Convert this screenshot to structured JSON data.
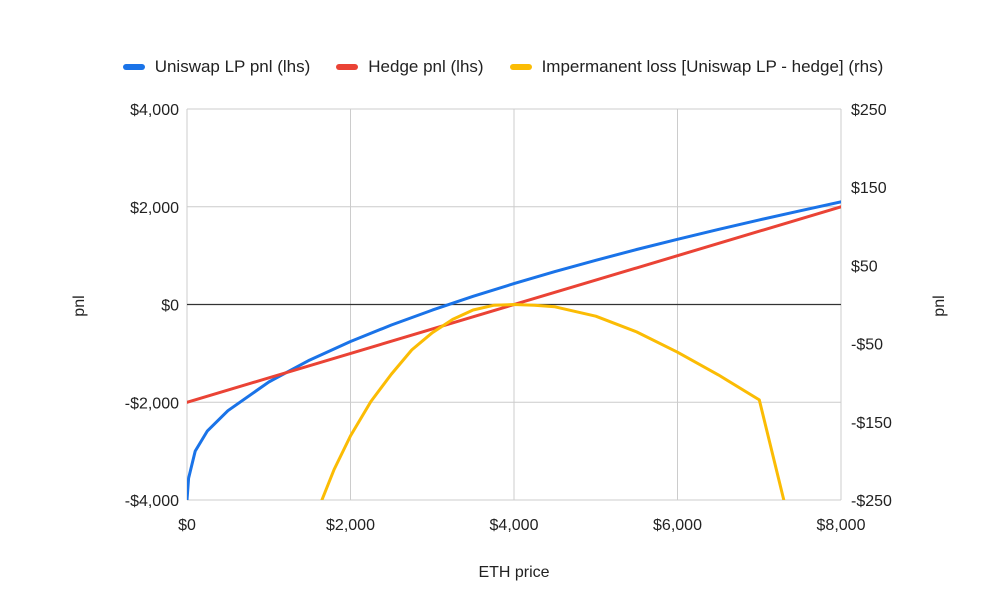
{
  "chart_data": {
    "type": "line",
    "legend_position": "top",
    "grid": true,
    "xlabel": "ETH price",
    "ylabel_left": "pnl",
    "ylabel_right": "pnl",
    "xlim": [
      0,
      8000
    ],
    "ylim_left": [
      -4000,
      4000
    ],
    "ylim_right": [
      -250,
      250
    ],
    "x_ticks": [
      0,
      2000,
      4000,
      6000,
      8000
    ],
    "x_tick_labels": [
      "$0",
      "$2,000",
      "$4,000",
      "$6,000",
      "$8,000"
    ],
    "y_left_ticks": [
      4000,
      2000,
      0,
      -2000,
      -4000
    ],
    "y_left_tick_labels": [
      "$4,000",
      "$2,000",
      "$0",
      "-$2,000",
      "-$4,000"
    ],
    "y_right_ticks": [
      250,
      150,
      50,
      -50,
      -150,
      -250
    ],
    "y_right_tick_labels": [
      "$250",
      "$150",
      "$50",
      "-$50",
      "-$150",
      "-$250"
    ],
    "series": [
      {
        "name": "Uniswap LP pnl (lhs)",
        "axis": "left",
        "color": "#1a73e8",
        "x": [
          0,
          20,
          100,
          250,
          500,
          1000,
          1500,
          2000,
          2500,
          3000,
          3500,
          4000,
          4500,
          5000,
          5500,
          6000,
          6500,
          7000,
          7500,
          8000
        ],
        "y": [
          -4000,
          -3553,
          -3000,
          -2586,
          -2172,
          -1586,
          -1138,
          -757,
          -420,
          -114,
          167,
          428,
          673,
          905,
          1125,
          1335,
          1537,
          1731,
          1918,
          2099
        ]
      },
      {
        "name": "Hedge pnl (lhs)",
        "axis": "left",
        "color": "#ea4335",
        "x": [
          0,
          8000
        ],
        "y": [
          -2000,
          2000
        ]
      },
      {
        "name": "Impermanent loss [Uniswap LP - hedge] (rhs)",
        "axis": "right",
        "color": "#fbbc04",
        "x": [
          1650,
          1800,
          2000,
          2250,
          2500,
          2750,
          3000,
          3250,
          3500,
          3750,
          4000,
          4250,
          4500,
          5000,
          5500,
          6000,
          6500,
          7000,
          7300
        ],
        "y": [
          -250,
          -211,
          -168,
          -124,
          -89,
          -58,
          -36,
          -19,
          -7,
          -1,
          0,
          -1,
          -3,
          -15,
          -35,
          -61,
          -90,
          -122,
          -250
        ]
      }
    ]
  }
}
